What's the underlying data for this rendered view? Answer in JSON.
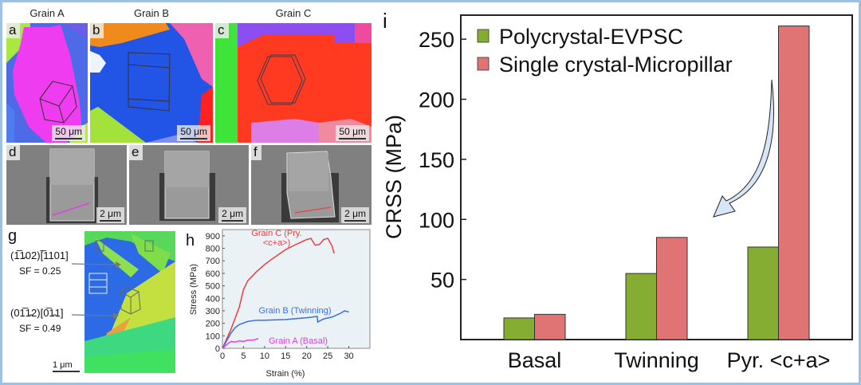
{
  "panels_top": {
    "titles": [
      "Grain A",
      "Grain B",
      "Grain C"
    ],
    "labels": [
      "a",
      "b",
      "c"
    ],
    "scale_bar": "50 μm"
  },
  "panels_mid": {
    "labels": [
      "d",
      "e",
      "f"
    ],
    "scale_bar": "2 μm"
  },
  "panel_g": {
    "label": "g",
    "annotation1": {
      "plane": "(1̅1̵02)[̅1101]",
      "plane_text": "(11̅ 02)[11̅ 01]",
      "sf": "SF = 0.25"
    },
    "annotation2": {
      "plane": "(01̅1̵2)[0̅1̵1]",
      "sf": "SF = 0.49"
    },
    "scale_bar": "1 μm"
  },
  "colors": {
    "green": "#84ad32",
    "red": "#e07373",
    "grainA": "#e83ae8",
    "grainB": "#3b6ee8",
    "grainC": "#f03c3c",
    "frame": "#9dc1e3",
    "arrow_fill": "#d6e6f8"
  },
  "chart_data": [
    {
      "type": "line",
      "panel": "h",
      "xlabel": "Strain (%)",
      "ylabel": "Stress (MPa)",
      "xlim": [
        0,
        35
      ],
      "ylim": [
        0,
        950
      ],
      "xticks": [
        "0",
        "5",
        "10",
        "15",
        "20",
        "25",
        "30"
      ],
      "yticks": [
        "0",
        "100",
        "200",
        "300",
        "400",
        "500",
        "600",
        "700",
        "800",
        "900"
      ],
      "series": [
        {
          "name": "Grain C (Pry.",
          "name2": "<c+a>)",
          "x": [
            0,
            2,
            4,
            5,
            6,
            8,
            10,
            12,
            15,
            18,
            20,
            21,
            22,
            23,
            24,
            25,
            26,
            26.5
          ],
          "y": [
            0,
            150,
            330,
            470,
            540,
            610,
            670,
            720,
            790,
            840,
            870,
            880,
            825,
            830,
            870,
            880,
            820,
            760
          ]
        },
        {
          "name": "Grain B (Twinning)",
          "x": [
            0,
            1,
            2,
            3,
            4,
            6,
            8,
            10,
            15,
            20,
            22.5,
            22.6,
            24,
            26,
            28,
            29,
            30
          ],
          "y": [
            0,
            60,
            120,
            165,
            190,
            215,
            225,
            225,
            230,
            245,
            255,
            210,
            235,
            250,
            280,
            300,
            290
          ]
        },
        {
          "name": "Grain A  (Basal)",
          "x": [
            0,
            1,
            2,
            3,
            4,
            5,
            6,
            7,
            8,
            8.5
          ],
          "y": [
            0,
            30,
            55,
            50,
            60,
            55,
            65,
            65,
            72,
            78
          ]
        }
      ]
    },
    {
      "type": "bar",
      "panel": "i",
      "categories": [
        "Basal",
        "Twinning",
        "Pyr. <c+a>"
      ],
      "series": [
        {
          "name": "Polycrystal-EVPSC",
          "values": [
            18,
            55,
            77
          ]
        },
        {
          "name": "Single crystal-Micropillar",
          "values": [
            21,
            85,
            261
          ]
        }
      ],
      "ylabel": "CRSS (MPa)",
      "ylim": [
        0,
        270
      ],
      "yticks": [
        "50",
        "100",
        "150",
        "200",
        "250"
      ],
      "legend": "top-left",
      "label": "i"
    }
  ]
}
